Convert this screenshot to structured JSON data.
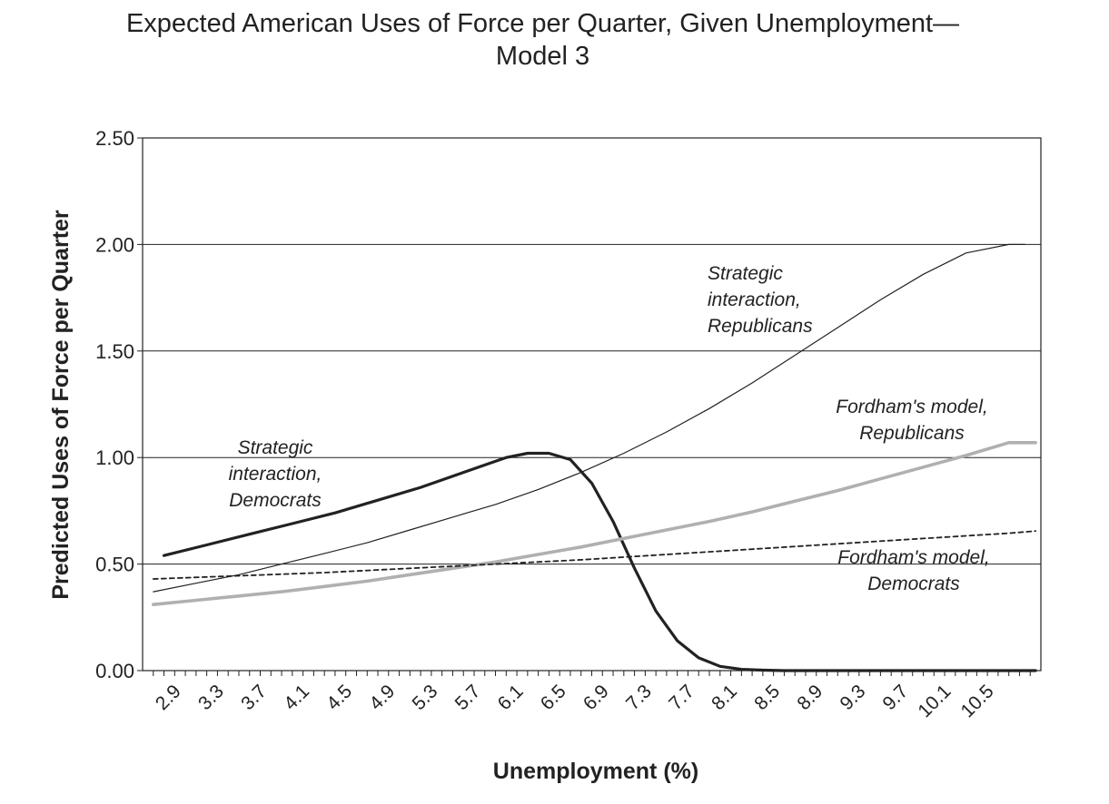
{
  "chart_data": {
    "type": "line",
    "title_line1": "Expected American Uses of Force per Quarter, Given Unemployment—",
    "title_line2": "Model 3",
    "xlabel": "Unemployment (%)",
    "ylabel": "Predicted Uses of Force per Quarter",
    "ylim": [
      0,
      2.5
    ],
    "xlim": [
      2.6,
      11.0
    ],
    "y_ticks": [
      "0.00",
      "0.50",
      "1.00",
      "1.50",
      "2.00",
      "2.50"
    ],
    "x_ticks": [
      "2.9",
      "3.3",
      "3.7",
      "4.1",
      "4.5",
      "4.9",
      "5.3",
      "5.7",
      "6.1",
      "6.5",
      "6.9",
      "7.3",
      "7.7",
      "8.1",
      "8.5",
      "8.9",
      "9.3",
      "9.7",
      "10.1",
      "10.5"
    ],
    "grid": "horizontal",
    "series": [
      {
        "name": "Strategic interaction, Republicans",
        "label_lines": [
          "Strategic",
          "interaction,",
          "Republicans"
        ],
        "color": "#222222",
        "x": [
          2.7,
          3.1,
          3.5,
          3.9,
          4.3,
          4.7,
          5.1,
          5.5,
          5.9,
          6.3,
          6.7,
          7.1,
          7.5,
          7.9,
          8.3,
          8.7,
          9.1,
          9.5,
          9.9,
          10.3,
          10.7,
          10.85
        ],
        "values": [
          0.37,
          0.41,
          0.45,
          0.5,
          0.55,
          0.6,
          0.66,
          0.72,
          0.78,
          0.85,
          0.93,
          1.02,
          1.12,
          1.23,
          1.35,
          1.48,
          1.61,
          1.74,
          1.86,
          1.96,
          2.0,
          2.0
        ]
      },
      {
        "name": "Strategic interaction, Democrats",
        "label_lines": [
          "Strategic",
          "interaction,",
          "Democrats"
        ],
        "color": "#222222",
        "x": [
          2.8,
          3.2,
          3.6,
          4.0,
          4.4,
          4.8,
          5.2,
          5.6,
          6.0,
          6.2,
          6.4,
          6.6,
          6.8,
          7.0,
          7.2,
          7.4,
          7.6,
          7.8,
          8.0,
          8.2,
          8.4,
          8.6,
          8.8,
          9.2,
          9.6,
          10.0,
          10.4,
          10.8,
          10.95
        ],
        "values": [
          0.54,
          0.59,
          0.64,
          0.69,
          0.74,
          0.8,
          0.86,
          0.93,
          1.0,
          1.02,
          1.02,
          0.99,
          0.88,
          0.7,
          0.48,
          0.28,
          0.14,
          0.06,
          0.02,
          0.006,
          0.002,
          0.0,
          0.0,
          0.0,
          0.0,
          0.0,
          0.0,
          0.0,
          0.0
        ]
      },
      {
        "name": "Fordham's model, Republicans",
        "label_lines": [
          "Fordham's model,",
          "Republicans"
        ],
        "color": "#b0b0b0",
        "x": [
          2.7,
          3.1,
          3.5,
          3.9,
          4.3,
          4.7,
          5.1,
          5.5,
          5.9,
          6.3,
          6.7,
          7.1,
          7.5,
          7.9,
          8.3,
          8.7,
          9.1,
          9.5,
          9.9,
          10.3,
          10.7,
          10.95
        ],
        "values": [
          0.31,
          0.33,
          0.35,
          0.37,
          0.395,
          0.42,
          0.45,
          0.48,
          0.51,
          0.545,
          0.58,
          0.62,
          0.66,
          0.7,
          0.745,
          0.795,
          0.845,
          0.9,
          0.955,
          1.01,
          1.07,
          1.07
        ]
      },
      {
        "name": "Fordham's model, Democrats",
        "label_lines": [
          "Fordham's model,",
          "Democrats"
        ],
        "color": "#222222",
        "dashed": true,
        "x": [
          2.7,
          3.5,
          4.3,
          5.1,
          5.9,
          6.7,
          7.5,
          8.3,
          9.1,
          9.9,
          10.7,
          10.95
        ],
        "values": [
          0.43,
          0.445,
          0.46,
          0.48,
          0.5,
          0.52,
          0.545,
          0.57,
          0.595,
          0.62,
          0.645,
          0.655
        ]
      }
    ]
  }
}
